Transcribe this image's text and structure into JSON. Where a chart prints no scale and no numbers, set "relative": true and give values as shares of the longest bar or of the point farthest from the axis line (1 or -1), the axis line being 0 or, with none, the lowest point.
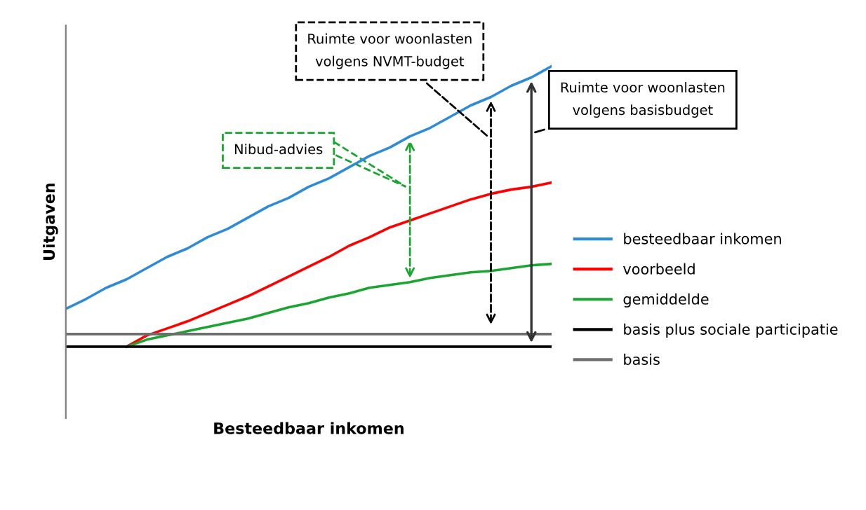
{
  "chart_data": {
    "type": "line",
    "relative": true,
    "xlabel": "Besteedbaar inkomen",
    "ylabel": "Uitgaven",
    "categories": [
      null,
      null,
      null,
      null,
      null,
      null,
      null,
      null,
      null,
      null,
      null,
      null,
      null,
      null,
      null,
      null,
      null,
      null,
      null,
      null,
      null,
      null,
      null,
      null,
      null
    ],
    "series": [
      {
        "name": "besteedbaar inkomen",
        "color": "#2e8bd8",
        "values": [
          0.135,
          0.17,
          0.21,
          0.24,
          0.28,
          0.32,
          0.35,
          0.39,
          0.42,
          0.46,
          0.5,
          0.53,
          0.57,
          0.6,
          0.64,
          0.68,
          0.71,
          0.75,
          0.78,
          0.82,
          0.86,
          0.89,
          0.93,
          0.96,
          1.0
        ]
      },
      {
        "name": "voorbeeld",
        "color": "#ff0000",
        "values": [
          null,
          null,
          null,
          0,
          0.04,
          0.065,
          0.09,
          0.12,
          0.15,
          0.18,
          0.215,
          0.25,
          0.285,
          0.32,
          0.36,
          0.39,
          0.425,
          0.45,
          0.475,
          0.5,
          0.525,
          0.545,
          0.56,
          0.57,
          0.585
        ]
      },
      {
        "name": "gemiddelde",
        "color": "#1aa531",
        "values": [
          null,
          null,
          null,
          0,
          0.025,
          0.04,
          0.055,
          0.07,
          0.085,
          0.1,
          0.12,
          0.14,
          0.155,
          0.175,
          0.19,
          0.21,
          0.22,
          0.23,
          0.245,
          0.255,
          0.265,
          0.27,
          0.28,
          0.29,
          0.295
        ]
      },
      {
        "name": "basis plus sociale participatie",
        "color": "#000000",
        "values": [
          0,
          0,
          0,
          0,
          0,
          0,
          0,
          0,
          0,
          0,
          0,
          0,
          0,
          0,
          0,
          0,
          0,
          0,
          0,
          0,
          0,
          0,
          0,
          0,
          0
        ]
      },
      {
        "name": "basis",
        "color": "#6e6e6e",
        "values": [
          0.045,
          0.045,
          0.045,
          0.045,
          0.045,
          0.045,
          0.045,
          0.045,
          0.045,
          0.045,
          0.045,
          0.045,
          0.045,
          0.045,
          0.045,
          0.045,
          0.045,
          0.045,
          0.045,
          0.045,
          0.045,
          0.045,
          0.045,
          0.045,
          0.045
        ]
      }
    ],
    "annotations": [
      "Ruimte voor woonlasten\nvolgens NVMT-budget",
      "Nibud-advies",
      "Ruimte voor woonlasten\nvolgens basisbudget"
    ],
    "legend": "right",
    "marker": "none",
    "line_style": "solid"
  }
}
